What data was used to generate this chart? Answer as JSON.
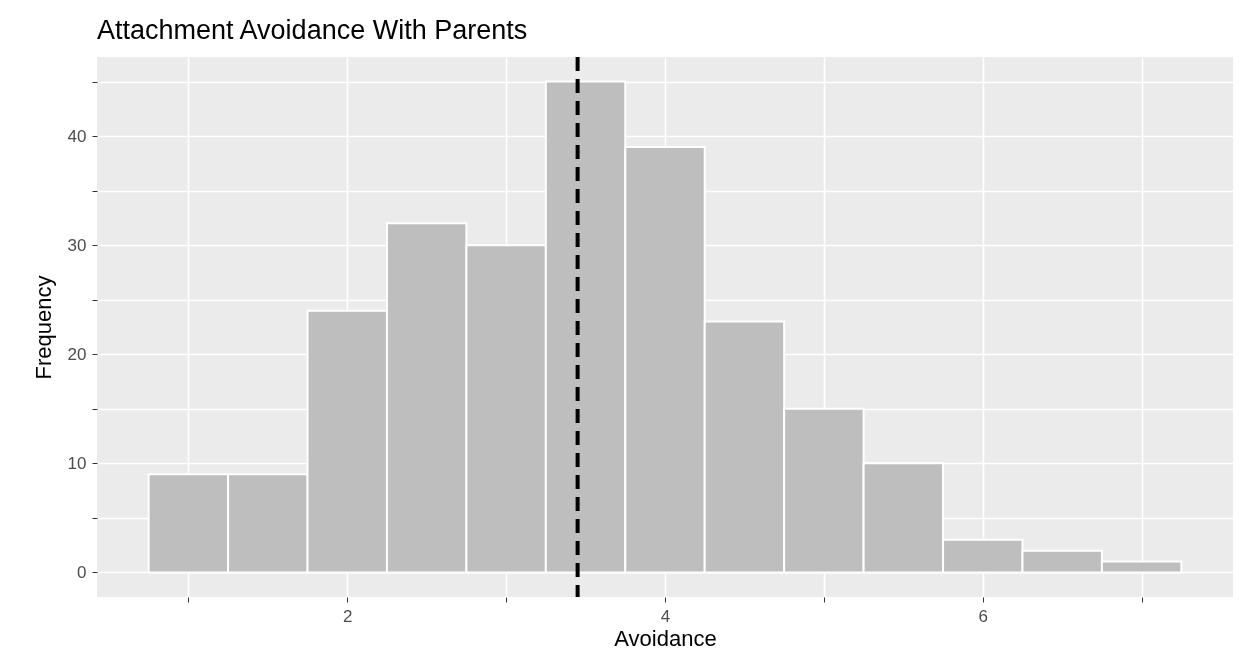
{
  "chart_data": {
    "type": "histogram",
    "title": "Attachment Avoidance With Parents",
    "xlabel": "Avoidance",
    "ylabel": "Frequency",
    "bins": [
      0.75,
      1.25,
      1.75,
      2.25,
      2.75,
      3.25,
      3.75,
      4.25,
      4.75,
      5.25,
      5.75,
      6.25,
      6.75,
      7.25
    ],
    "values": [
      9,
      9,
      24,
      32,
      30,
      45,
      39,
      23,
      15,
      10,
      3,
      2,
      1
    ],
    "color": "#bebebe",
    "xlim": [
      0.425,
      7.575
    ],
    "ylim": [
      -2.25,
      47.25
    ],
    "xticks": [
      {
        "value": 1,
        "label": null
      },
      2,
      {
        "value": 3,
        "label": null
      },
      4,
      {
        "value": 5,
        "label": null
      },
      6,
      {
        "value": 7,
        "label": null
      }
    ],
    "yticks": [
      0,
      {
        "value": 5,
        "label": null
      },
      10,
      {
        "value": 15,
        "label": null
      },
      20,
      {
        "value": 25,
        "label": null
      },
      30,
      {
        "value": 35,
        "label": null
      },
      40,
      {
        "value": 45,
        "label": null
      }
    ],
    "ref_lines": [
      {
        "axis": "x",
        "value": 3.45,
        "color": "#000000",
        "line_style": "dashed"
      }
    ],
    "grid": true
  }
}
